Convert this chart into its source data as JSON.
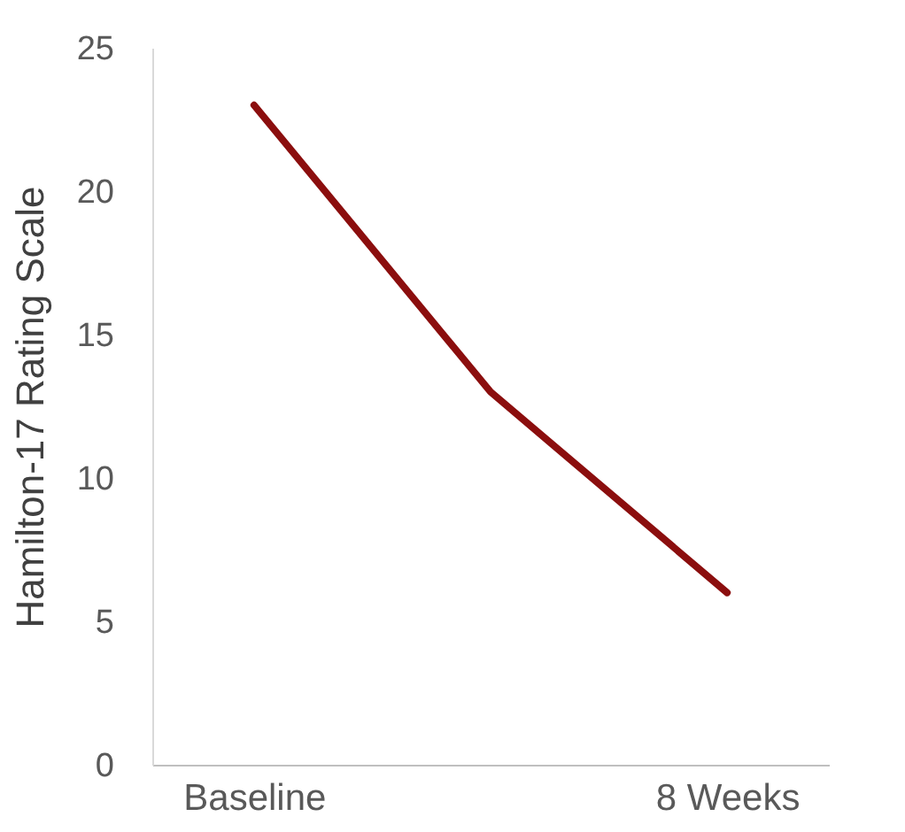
{
  "chart_data": {
    "type": "line",
    "ylabel": "Hamilton-17 Rating Scale",
    "categories": [
      "Baseline",
      null,
      "8 Weeks"
    ],
    "series": [
      {
        "color": "#8b0e0e",
        "values": [
          23,
          13,
          6
        ]
      }
    ],
    "ylim": [
      0,
      25
    ],
    "yticks": [
      0,
      5,
      10,
      15,
      20,
      25
    ],
    "grid": false,
    "legend": false,
    "marker": "none",
    "line_style": "solid"
  }
}
